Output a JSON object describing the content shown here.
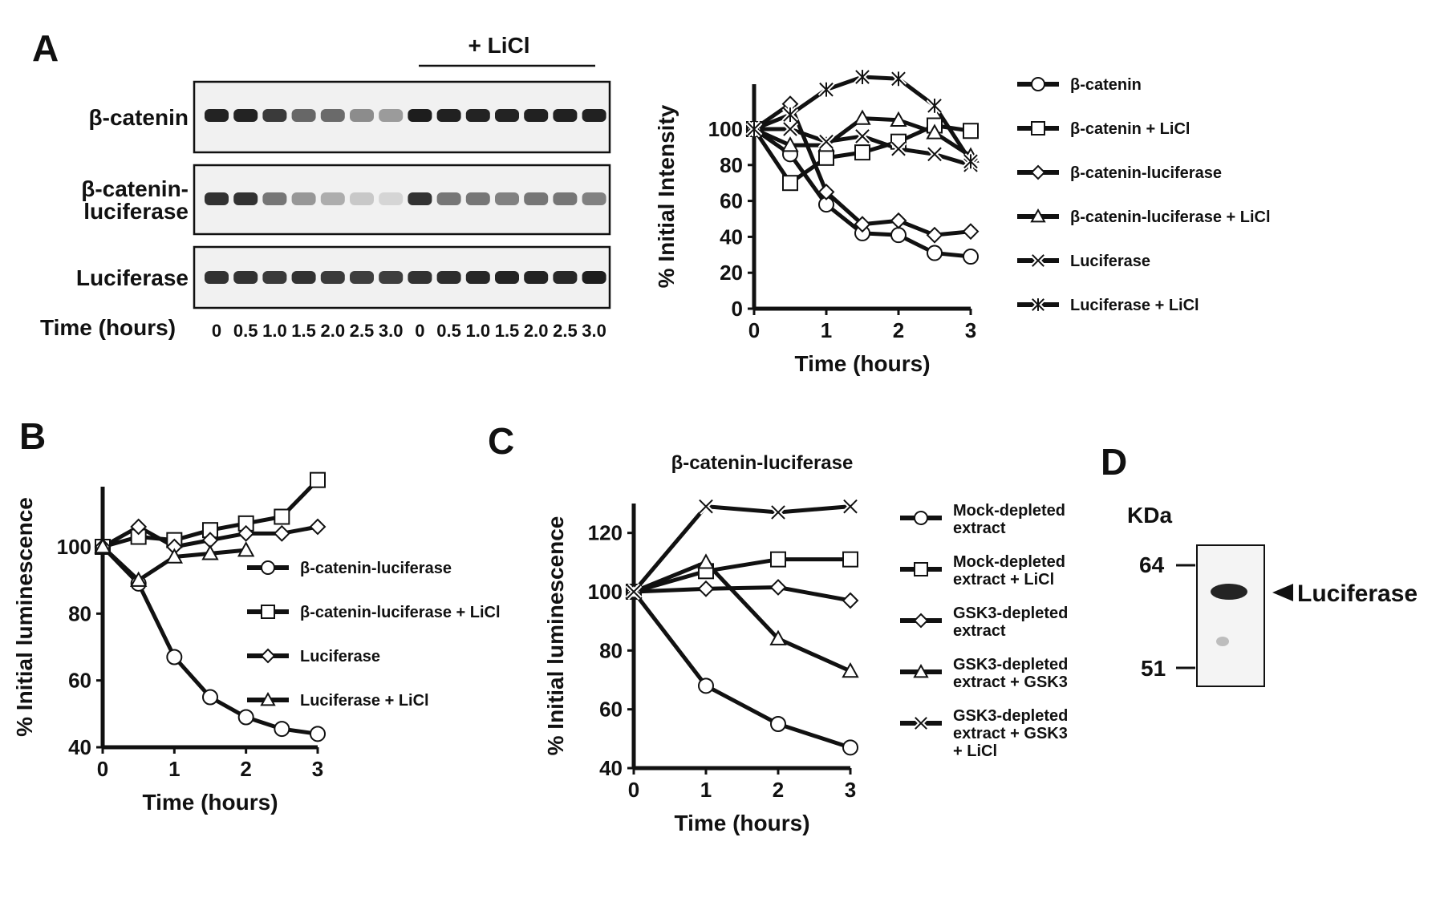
{
  "panel_letters": {
    "a": "A",
    "b": "B",
    "c": "C",
    "d": "D"
  },
  "panel_a_blot": {
    "treatment_label": "+ LiCl",
    "rows": [
      {
        "label_lines": [
          "β-catenin"
        ],
        "intensity": [
          0.92,
          0.92,
          0.82,
          0.62,
          0.6,
          0.45,
          0.38,
          0.95,
          0.93,
          0.92,
          0.92,
          0.93,
          0.93,
          0.93
        ]
      },
      {
        "label_lines": [
          "β-catenin-",
          "luciferase"
        ],
        "intensity": [
          0.85,
          0.85,
          0.55,
          0.4,
          0.3,
          0.18,
          0.12,
          0.85,
          0.55,
          0.55,
          0.5,
          0.55,
          0.55,
          0.5
        ]
      },
      {
        "label_lines": [
          "Luciferase"
        ],
        "intensity": [
          0.85,
          0.85,
          0.82,
          0.85,
          0.82,
          0.8,
          0.8,
          0.85,
          0.88,
          0.9,
          0.92,
          0.92,
          0.9,
          0.95
        ]
      }
    ],
    "time_title": "Time (hours)",
    "lane_labels": [
      "0",
      "0.5",
      "1.0",
      "1.5",
      "2.0",
      "2.5",
      "3.0",
      "0",
      "0.5",
      "1.0",
      "1.5",
      "2.0",
      "2.5",
      "3.0"
    ]
  },
  "chart_data": [
    {
      "id": "A",
      "type": "line",
      "title": "",
      "xlabel": "Time (hours)",
      "ylabel": "% Initial Intensity",
      "xlim": [
        0,
        3
      ],
      "ylim": [
        0,
        125
      ],
      "xticks": [
        0,
        1,
        2,
        3
      ],
      "yticks": [
        0,
        20,
        40,
        60,
        80,
        100
      ],
      "grid": false,
      "legend": "right",
      "series": [
        {
          "name": "β-catenin",
          "marker": "circle",
          "x": [
            0,
            0.5,
            1,
            1.5,
            2,
            2.5,
            3
          ],
          "values": [
            100,
            86,
            58,
            42,
            41,
            31,
            29
          ]
        },
        {
          "name": "β-catenin + LiCl",
          "marker": "square",
          "x": [
            0,
            0.5,
            1,
            1.5,
            2,
            2.5,
            3
          ],
          "values": [
            100,
            70,
            84,
            87,
            93,
            102,
            99
          ]
        },
        {
          "name": "β-catenin-luciferase",
          "marker": "diamond",
          "x": [
            0,
            0.5,
            1,
            1.5,
            2,
            2.5,
            3
          ],
          "values": [
            100,
            114,
            65,
            47,
            49,
            41,
            43
          ]
        },
        {
          "name": "β-catenin-luciferase + LiCl",
          "marker": "triangle",
          "x": [
            0,
            0.5,
            1,
            1.5,
            2,
            2.5,
            3
          ],
          "values": [
            100,
            91,
            91,
            106,
            105,
            98,
            85
          ]
        },
        {
          "name": "Luciferase",
          "marker": "x",
          "x": [
            0,
            0.5,
            1,
            1.5,
            2,
            2.5,
            3
          ],
          "values": [
            100,
            100,
            93,
            96,
            89,
            86,
            80
          ]
        },
        {
          "name": "Luciferase + LiCl",
          "marker": "asterisk",
          "x": [
            0,
            0.5,
            1,
            1.5,
            2,
            2.5,
            3
          ],
          "values": [
            100,
            108,
            122,
            129,
            128,
            113,
            82
          ]
        }
      ]
    },
    {
      "id": "B",
      "type": "line",
      "title": "",
      "xlabel": "Time (hours)",
      "ylabel": "% Initial luminescence",
      "xlim": [
        0,
        3
      ],
      "ylim": [
        40,
        118
      ],
      "xticks": [
        0,
        1,
        2,
        3
      ],
      "yticks": [
        40,
        60,
        80,
        100
      ],
      "grid": false,
      "legend": "right",
      "series": [
        {
          "name": "β-catenin-luciferase",
          "marker": "circle",
          "x": [
            0,
            0.5,
            1,
            1.5,
            2,
            2.5,
            3
          ],
          "values": [
            100,
            89,
            67,
            55,
            49,
            45.5,
            44
          ]
        },
        {
          "name": "β-catenin-luciferase + LiCl",
          "marker": "square",
          "x": [
            0,
            0.5,
            1,
            1.5,
            2,
            2.5,
            3
          ],
          "values": [
            100,
            103,
            102,
            105,
            107,
            109,
            120
          ]
        },
        {
          "name": "Luciferase",
          "marker": "diamond",
          "x": [
            0,
            0.5,
            1,
            1.5,
            2,
            2.5,
            3
          ],
          "values": [
            100,
            106,
            100,
            102,
            104,
            104,
            106
          ]
        },
        {
          "name": "Luciferase + LiCl",
          "marker": "triangle",
          "x": [
            0,
            0.5,
            1,
            1.5,
            2,
            2.5,
            3
          ],
          "values": [
            100,
            90,
            97,
            98,
            99,
            null,
            null
          ]
        }
      ]
    },
    {
      "id": "C",
      "type": "line",
      "title": "β-catenin-luciferase",
      "xlabel": "Time (hours)",
      "ylabel": "% Initial luminescence",
      "xlim": [
        0,
        3
      ],
      "ylim": [
        40,
        130
      ],
      "xticks": [
        0,
        1,
        2,
        3
      ],
      "yticks": [
        40,
        60,
        80,
        100,
        120
      ],
      "grid": false,
      "legend": "right",
      "series": [
        {
          "name": "Mock-depleted extract",
          "legend_lines": [
            "Mock-depleted",
            "extract"
          ],
          "marker": "circle",
          "x": [
            0,
            1,
            2,
            3
          ],
          "values": [
            100,
            68,
            55,
            47
          ]
        },
        {
          "name": "Mock-depleted extract + LiCl",
          "legend_lines": [
            "Mock-depleted",
            "extract + LiCl"
          ],
          "marker": "square",
          "x": [
            0,
            1,
            2,
            3
          ],
          "values": [
            100,
            107,
            111,
            111
          ]
        },
        {
          "name": "GSK3-depleted extract",
          "legend_lines": [
            "GSK3-depleted",
            "extract"
          ],
          "marker": "diamond",
          "x": [
            0,
            1,
            2,
            3
          ],
          "values": [
            100,
            101,
            101.5,
            97
          ]
        },
        {
          "name": "GSK3-depleted extract + GSK3",
          "legend_lines": [
            "GSK3-depleted",
            "extract + GSK3"
          ],
          "marker": "triangle",
          "x": [
            0,
            1,
            2,
            3
          ],
          "values": [
            100,
            110,
            84,
            73
          ]
        },
        {
          "name": "GSK3-depleted extract + GSK3 + LiCl",
          "legend_lines": [
            "GSK3-depleted",
            "extract + GSK3",
            "+ LiCl"
          ],
          "marker": "x",
          "x": [
            0,
            1,
            2,
            3
          ],
          "values": [
            100,
            129,
            127,
            129
          ]
        }
      ]
    }
  ],
  "panel_d": {
    "unit_label": "KDa",
    "markers": [
      "64",
      "51"
    ],
    "band_label": "Luciferase"
  }
}
